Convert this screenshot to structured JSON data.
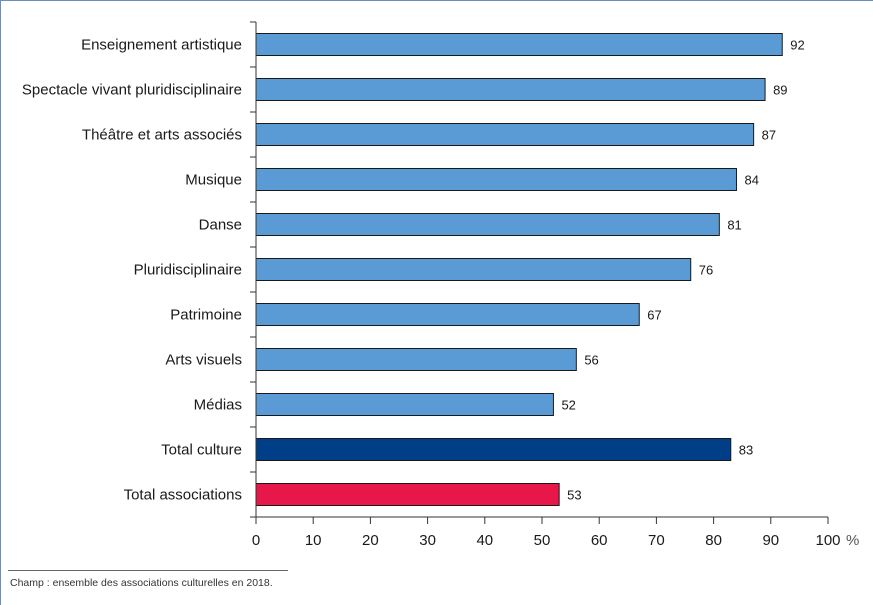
{
  "chart_data": {
    "type": "bar",
    "orientation": "horizontal",
    "categories": [
      "Enseignement artistique",
      "Spectacle vivant pluridisciplinaire",
      "Théâtre et arts associés",
      "Musique",
      "Danse",
      "Pluridisciplinaire",
      "Patrimoine",
      "Arts visuels",
      "Médias",
      "Total culture",
      "Total associations"
    ],
    "values": [
      92,
      89,
      87,
      84,
      81,
      76,
      67,
      56,
      52,
      83,
      53
    ],
    "colors": [
      "#5b9bd5",
      "#5b9bd5",
      "#5b9bd5",
      "#5b9bd5",
      "#5b9bd5",
      "#5b9bd5",
      "#5b9bd5",
      "#5b9bd5",
      "#5b9bd5",
      "#003f87",
      "#e8174a"
    ],
    "xlim": [
      0,
      100
    ],
    "xticks": [
      0,
      10,
      20,
      30,
      40,
      50,
      60,
      70,
      80,
      90,
      100
    ],
    "xunit": "%",
    "grid": false,
    "legend": "none"
  },
  "footnote": "Champ : ensemble des associations culturelles en 2018."
}
